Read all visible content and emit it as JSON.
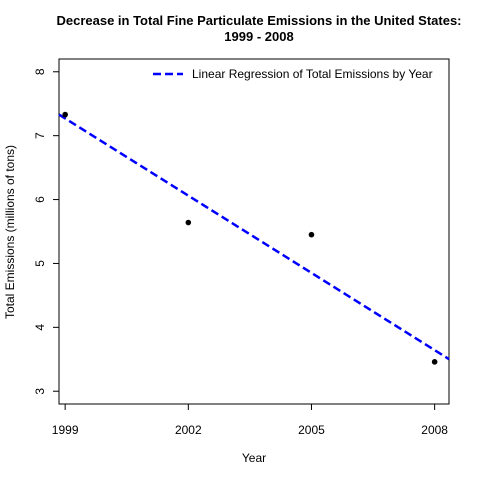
{
  "chart_data": {
    "type": "scatter",
    "title_lines": [
      "Decrease in Total Fine Particulate Emissions in the United States:",
      "1999 - 2008"
    ],
    "xlabel": "Year",
    "ylabel": "Total Emissions (millions of tons)",
    "x_ticks": [
      1999,
      2002,
      2005,
      2008
    ],
    "y_ticks": [
      3,
      4,
      5,
      6,
      7,
      8
    ],
    "xlim": [
      1998.85,
      2008.35
    ],
    "ylim": [
      2.8,
      8.2
    ],
    "grid": false,
    "points": [
      {
        "x": 1999,
        "y": 7.33
      },
      {
        "x": 2002,
        "y": 5.64
      },
      {
        "x": 2005,
        "y": 5.45
      },
      {
        "x": 2008,
        "y": 3.46
      }
    ],
    "regression_line": {
      "name": "Linear Regression of Total Emissions by Year",
      "intercept_at_1999": 7.27,
      "slope_per_year": -0.403,
      "style": "dashed",
      "color": "#0000ff"
    },
    "legend": {
      "position": "top-right",
      "entries": [
        "Linear Regression of Total Emissions by Year"
      ]
    },
    "point_color": "#000000"
  }
}
